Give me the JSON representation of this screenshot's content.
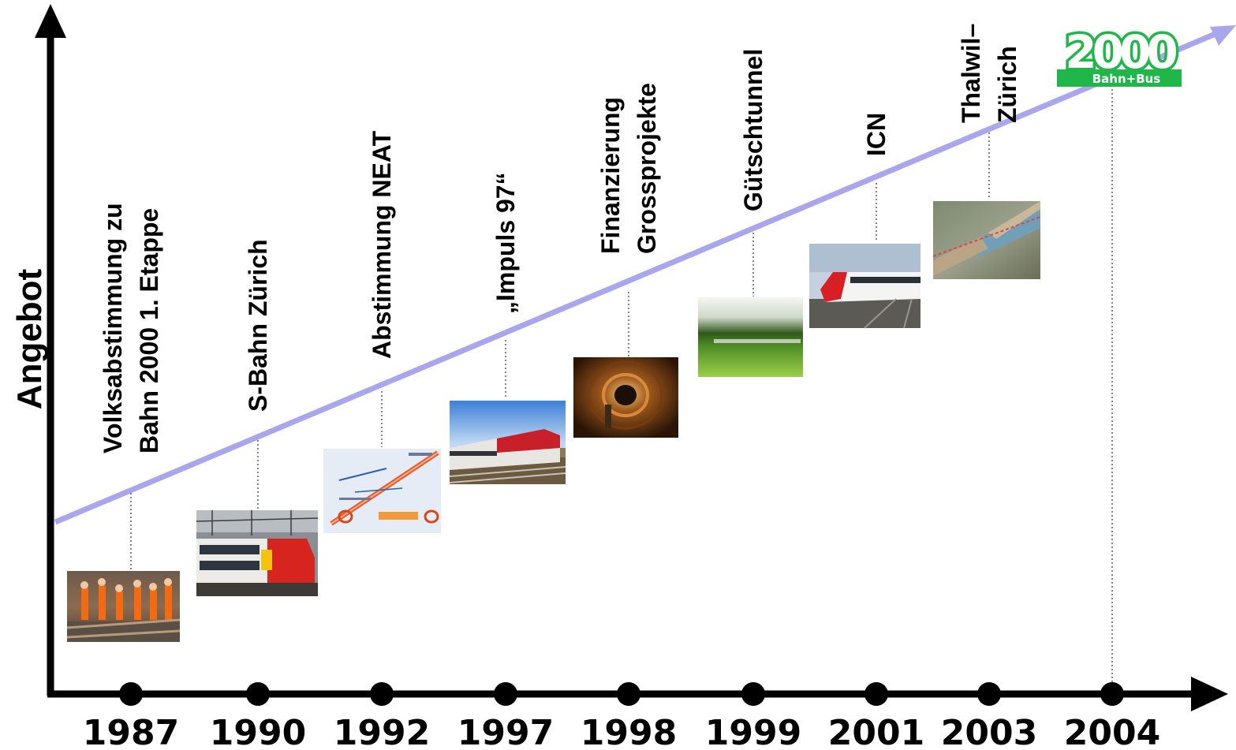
{
  "y_axis_label": "Angebot",
  "milestones": [
    {
      "year": "1987",
      "lines": [
        "Volksabstimmung zu",
        "Bahn 2000 1. Etappe"
      ],
      "photo": "track-workers-photo"
    },
    {
      "year": "1990",
      "lines": [
        "S-Bahn Zürich"
      ],
      "photo": "double-deck-train-photo"
    },
    {
      "year": "1992",
      "lines": [
        "Abstimmung NEAT"
      ],
      "photo": "neat-diagram-photo"
    },
    {
      "year": "1997",
      "lines": [
        "„Impuls 97“"
      ],
      "photo": "intercity-train-photo"
    },
    {
      "year": "1998",
      "lines": [
        "Finanzierung",
        "Grossprojekte"
      ],
      "photo": "tunnel-photo"
    },
    {
      "year": "1999",
      "lines": [
        "Gütschtunnel"
      ],
      "photo": "meadow-train-photo"
    },
    {
      "year": "2001",
      "lines": [
        "ICN"
      ],
      "photo": "icn-train-photo"
    },
    {
      "year": "2003",
      "lines": [
        "Thalwil–",
        "Zürich"
      ],
      "photo": "aerial-photo"
    },
    {
      "year": "2004",
      "lines": [],
      "photo": "bahn-2000-logo"
    }
  ],
  "logo": {
    "number": "2000",
    "subtitle": "Bahn+Bus"
  },
  "colors": {
    "trend_line": "#a9a6ee",
    "axis": "#000000",
    "logo_green": "#21b64a"
  }
}
